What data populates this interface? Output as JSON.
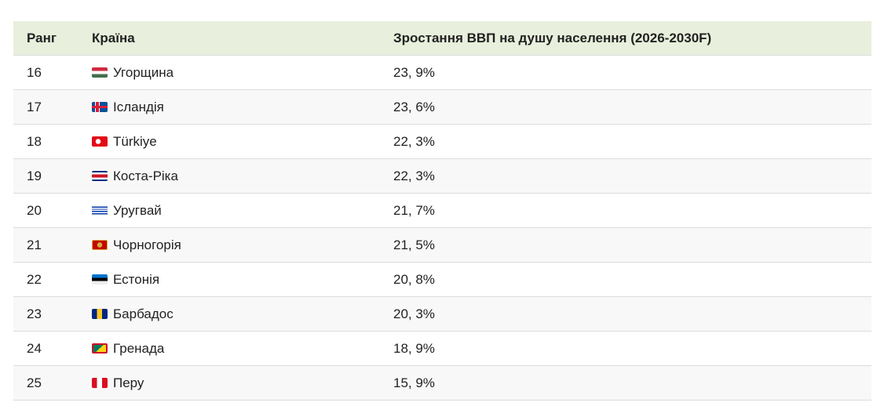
{
  "table": {
    "headers": [
      "Ранг",
      "Країна",
      "Зростання ВВП на душу населення (2026-2030F)"
    ],
    "rows": [
      {
        "rank": "16",
        "flag": "hu",
        "country": "Угорщина",
        "value": "23, 9%"
      },
      {
        "rank": "17",
        "flag": "is",
        "country": "Ісландія",
        "value": "23, 6%"
      },
      {
        "rank": "18",
        "flag": "tr",
        "country": "Türkiye",
        "value": "22, 3%"
      },
      {
        "rank": "19",
        "flag": "cr",
        "country": "Коста-Ріка",
        "value": "22, 3%"
      },
      {
        "rank": "20",
        "flag": "uy",
        "country": "Уругвай",
        "value": "21, 7%"
      },
      {
        "rank": "21",
        "flag": "me",
        "country": "Чорногорія",
        "value": "21, 5%"
      },
      {
        "rank": "22",
        "flag": "ee",
        "country": "Естонія",
        "value": "20, 8%"
      },
      {
        "rank": "23",
        "flag": "bb",
        "country": "Барбадос",
        "value": "20, 3%"
      },
      {
        "rank": "24",
        "flag": "gd",
        "country": "Гренада",
        "value": "18, 9%"
      },
      {
        "rank": "25",
        "flag": "pe",
        "country": "Перу",
        "value": "15, 9%"
      }
    ]
  },
  "colors": {
    "header_bg": "#e8efdc",
    "alt_row_bg": "#f8f8f8"
  }
}
